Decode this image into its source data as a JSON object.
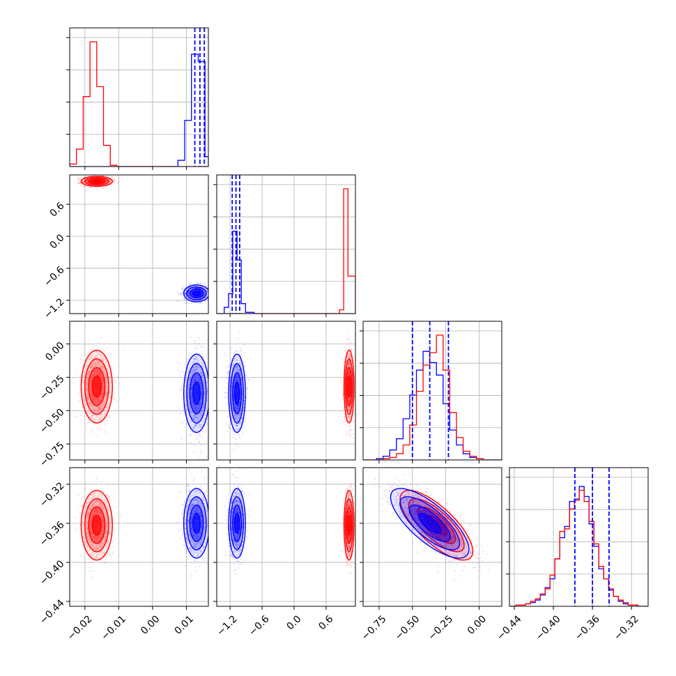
{
  "chart_data": {
    "type": "corner",
    "colors": {
      "series_a": "#ff0000",
      "series_b": "#0000ff",
      "grid": "#b0b0b0",
      "axes": "#000000"
    },
    "grid": true,
    "parameters": [
      {
        "lim": [
          -0.0245,
          0.0165
        ],
        "ticks": [
          -0.02,
          -0.01,
          0.0,
          0.01
        ],
        "tick_labels": [
          "−0.02",
          "−0.01",
          "0.00",
          "0.01"
        ]
      },
      {
        "lim": [
          -1.45,
          1.15
        ],
        "ticks": [
          -1.2,
          -0.6,
          0.0,
          0.6
        ],
        "tick_labels": [
          "−1.2",
          "−0.6",
          "0.0",
          "0.6"
        ]
      },
      {
        "lim": [
          -0.87,
          0.17
        ],
        "ticks": [
          -0.75,
          -0.5,
          -0.25,
          0.0
        ],
        "tick_labels": [
          "−0.75",
          "−0.50",
          "−0.25",
          "0.00"
        ]
      },
      {
        "lim": [
          -0.445,
          -0.303
        ],
        "ticks": [
          -0.44,
          -0.4,
          -0.36,
          -0.32
        ],
        "tick_labels": [
          "−0.44",
          "−0.40",
          "−0.36",
          "−0.32"
        ]
      }
    ],
    "series": [
      {
        "color": "#ff0000",
        "mean": [
          -0.0165,
          1.03,
          -0.32,
          -0.362
        ],
        "std": [
          0.0022,
          0.045,
          0.13,
          0.017
        ]
      },
      {
        "color": "#0000ff",
        "mean": [
          0.013,
          -1.07,
          -0.37,
          -0.36
        ],
        "std": [
          0.0018,
          0.075,
          0.14,
          0.017
        ]
      }
    ],
    "correlation_params_2_3": -0.75,
    "quantile_lines": {
      "color": "#0000ff",
      "style": "dashed",
      "values": [
        [
          0.0125,
          0.014,
          0.0153
        ],
        [
          -1.16,
          -1.09,
          -1.02
        ],
        [
          -0.5,
          -0.37,
          -0.23
        ],
        [
          -0.378,
          -0.36,
          -0.343
        ]
      ]
    },
    "histograms": [
      {
        "bins": [
          -0.0245,
          -0.0225,
          -0.0205,
          -0.0185,
          -0.0165,
          -0.0145,
          -0.0125,
          -0.0105,
          -0.0085,
          -0.0065,
          -0.0045,
          -0.0025,
          -0.0005,
          0.0015,
          0.0035,
          0.0055,
          0.0075,
          0.0095,
          0.0115,
          0.0135,
          0.0155,
          0.0165
        ],
        "red": [
          0.02,
          0.14,
          0.56,
          1.0,
          0.64,
          0.17,
          0.01,
          0,
          0,
          0,
          0,
          0,
          0,
          0,
          0,
          0,
          0,
          0,
          0,
          0,
          0
        ],
        "blue": [
          0,
          0,
          0,
          0,
          0,
          0,
          0,
          0,
          0,
          0,
          0,
          0,
          0,
          0,
          0,
          0,
          0.05,
          0.37,
          0.9,
          0.84,
          0.08
        ]
      },
      {
        "bins": [
          -1.45,
          -1.31,
          -1.23,
          -1.15,
          -1.07,
          -0.99,
          -0.91,
          -0.75,
          0.0,
          0.85,
          0.93,
          1.01,
          1.15
        ],
        "red": [
          0,
          0,
          0,
          0,
          0,
          0,
          0,
          0,
          0,
          0.03,
          1.0,
          0.3
        ],
        "blue": [
          0,
          0.05,
          0.16,
          0.66,
          0.43,
          0.08,
          0.01,
          0,
          0,
          0,
          0,
          0
        ]
      },
      {
        "bins": [
          -0.87,
          -0.77,
          -0.72,
          -0.67,
          -0.62,
          -0.57,
          -0.52,
          -0.47,
          -0.42,
          -0.37,
          -0.32,
          -0.27,
          -0.22,
          -0.17,
          -0.12,
          -0.07,
          -0.02,
          0.03,
          0.08,
          0.17
        ],
        "red": [
          0,
          0,
          0.01,
          0.02,
          0.05,
          0.12,
          0.28,
          0.55,
          0.76,
          0.86,
          1.0,
          0.72,
          0.38,
          0.18,
          0.07,
          0.03,
          0.01,
          0,
          0
        ],
        "blue": [
          0,
          0.01,
          0.03,
          0.08,
          0.17,
          0.33,
          0.52,
          0.72,
          0.87,
          0.78,
          0.68,
          0.45,
          0.24,
          0.12,
          0.05,
          0.02,
          0.01,
          0,
          0
        ]
      },
      {
        "bins": [
          -0.445,
          -0.4385,
          -0.4335,
          -0.4285,
          -0.4235,
          -0.4185,
          -0.4135,
          -0.4085,
          -0.4035,
          -0.3985,
          -0.3935,
          -0.3885,
          -0.3835,
          -0.3785,
          -0.3735,
          -0.3685,
          -0.3635,
          -0.3585,
          -0.3535,
          -0.3485,
          -0.3435,
          -0.3385,
          -0.3335,
          -0.3285,
          -0.3235,
          -0.3185,
          -0.3135,
          -0.3085,
          -0.303
        ],
        "red": [
          0,
          0.01,
          0.01,
          0.02,
          0.04,
          0.06,
          0.1,
          0.14,
          0.25,
          0.38,
          0.6,
          0.62,
          0.78,
          0.85,
          0.93,
          0.84,
          0.68,
          0.5,
          0.32,
          0.22,
          0.14,
          0.08,
          0.05,
          0.03,
          0.01,
          0.01,
          0,
          0
        ],
        "blue": [
          0,
          0.01,
          0.01,
          0.02,
          0.03,
          0.05,
          0.09,
          0.15,
          0.22,
          0.38,
          0.55,
          0.64,
          0.84,
          0.86,
          0.96,
          0.88,
          0.66,
          0.48,
          0.3,
          0.22,
          0.13,
          0.08,
          0.04,
          0.02,
          0.01,
          0.01,
          0,
          0
        ]
      }
    ]
  }
}
